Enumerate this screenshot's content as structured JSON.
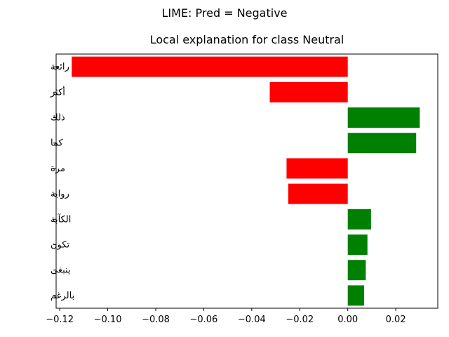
{
  "chart_data": {
    "type": "bar",
    "orientation": "horizontal",
    "suptitle": "LIME: Pred = Negative",
    "title": "Local explanation for class Neutral",
    "xlabel": "",
    "ylabel": "",
    "xlim": [
      -0.1215,
      0.0375
    ],
    "xticks": [
      -0.12,
      -0.1,
      -0.08,
      -0.06,
      -0.04,
      -0.02,
      0.0,
      0.02
    ],
    "xtick_labels": [
      "−0.12",
      "−0.10",
      "−0.08",
      "−0.06",
      "−0.04",
      "−0.02",
      "0.00",
      "0.02"
    ],
    "categories": [
      "رائعة",
      "أكثر",
      "ذلك",
      "كما",
      "مرة",
      "رواية",
      "الكآبة",
      "تكون",
      "ينبغى",
      "بالرغم"
    ],
    "values": [
      -0.115,
      -0.0325,
      0.03,
      0.0285,
      -0.0255,
      -0.0248,
      0.0097,
      0.0082,
      0.0075,
      0.0068
    ],
    "colors": {
      "positive": "#008000",
      "negative": "#ff0000"
    },
    "grid": false
  }
}
